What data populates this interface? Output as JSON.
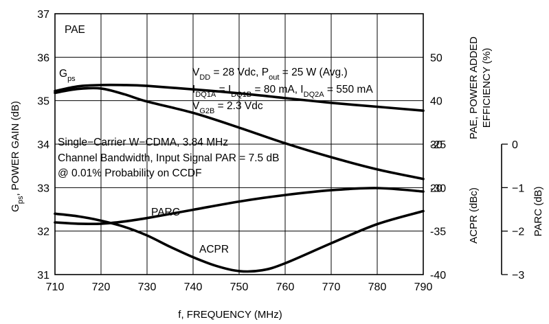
{
  "chart_data": {
    "type": "line",
    "x_label": "f, FREQUENCY (MHz)",
    "x_ticks": [
      "710",
      "720",
      "730",
      "740",
      "750",
      "760",
      "770",
      "780",
      "790"
    ],
    "x_range": [
      710,
      790
    ],
    "left_axis": {
      "label_main": "G",
      "label_sub": "ps",
      "label_rest": ", POWER GAIN (dB)",
      "ticks": [
        "31",
        "32",
        "33",
        "34",
        "35",
        "36",
        "37"
      ],
      "range": [
        31,
        37
      ]
    },
    "right_axis_pae": {
      "label_line1": "PAE, POWER ADDED",
      "label_line2": "EFFICIENCY (%)",
      "ticks": [
        "20",
        "30",
        "40",
        "50"
      ],
      "range": [
        0,
        60
      ]
    },
    "right_axis_acpr": {
      "label": "ACPR (dBc)",
      "ticks": [
        "-25",
        "-30",
        "-35",
        "-40"
      ],
      "range": [
        -40,
        -10
      ]
    },
    "parc_axis": {
      "label": "PARC (dB)",
      "ticks": [
        "0",
        "−1",
        "−2",
        "−3"
      ],
      "range": [
        -3,
        0
      ]
    },
    "grid": true,
    "series": [
      {
        "name": "PAE",
        "axis": "pae",
        "x": [
          710,
          715,
          720,
          725,
          730,
          740,
          750,
          760,
          770,
          780,
          790
        ],
        "y": [
          42.2,
          43.3,
          43.6,
          43.6,
          43.4,
          42.6,
          41.7,
          40.6,
          39.5,
          38.6,
          37.7
        ]
      },
      {
        "name": "G",
        "name_sub": "ps",
        "axis": "gain",
        "x": [
          710,
          715,
          720,
          725,
          730,
          740,
          750,
          760,
          770,
          780,
          790
        ],
        "y": [
          35.18,
          35.27,
          35.28,
          35.15,
          34.98,
          34.72,
          34.38,
          34.02,
          33.7,
          33.42,
          33.2
        ]
      },
      {
        "name": "PARC",
        "axis": "parc",
        "x": [
          710,
          715,
          720,
          725,
          730,
          740,
          750,
          760,
          770,
          780,
          790
        ],
        "y": [
          -1.8,
          -1.83,
          -1.83,
          -1.78,
          -1.7,
          -1.51,
          -1.32,
          -1.17,
          -1.06,
          -1.01,
          -1.09
        ]
      },
      {
        "name": "ACPR",
        "axis": "acpr",
        "x": [
          710,
          715,
          720,
          725,
          730,
          735,
          740,
          745,
          750,
          755,
          760,
          770,
          780,
          790
        ],
        "y": [
          -33.0,
          -33.3,
          -33.8,
          -34.5,
          -35.5,
          -36.8,
          -38.0,
          -39.0,
          -39.6,
          -39.5,
          -38.7,
          -36.4,
          -34.2,
          -32.7
        ]
      }
    ],
    "annotations": {
      "line1": {
        "a": "V",
        "a_sub": "DD",
        "b": " = 28 Vdc, P",
        "b_sub": "out",
        "c": " = 25 W (Avg.)"
      },
      "line2": {
        "a": "I",
        "a_sub": "DQ1A",
        "b": " = I",
        "b_sub": "DQ1B",
        "c": " = 80 mA, I",
        "c_sub": "DQ2A",
        "d": " = 550 mA"
      },
      "line3": {
        "a": "V",
        "a_sub": "G2B",
        "b": " = 2.3 Vdc"
      },
      "cdma1": "Single−Carrier W−CDMA, 3.84 MHz",
      "cdma2": "Channel Bandwidth, Input Signal PAR = 7.5 dB",
      "cdma3": "@ 0.01% Probability on CCDF"
    }
  }
}
